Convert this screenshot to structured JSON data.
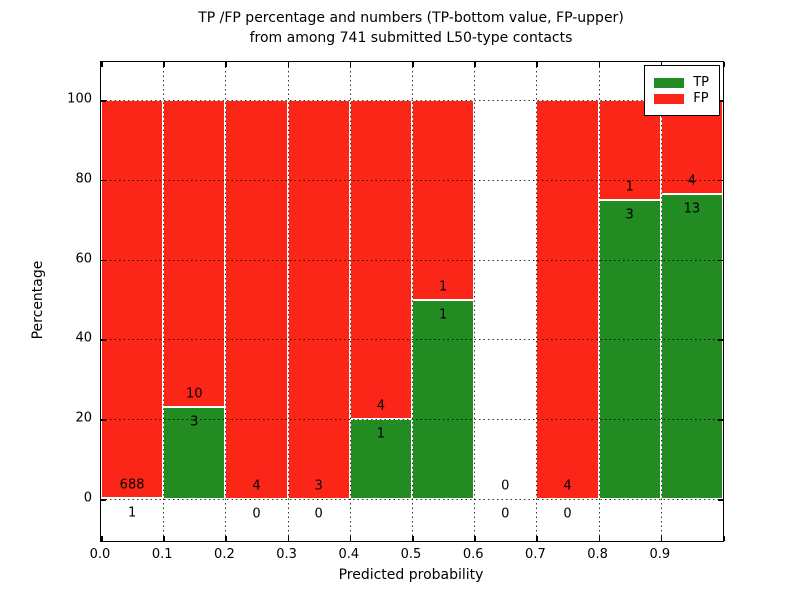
{
  "title": {
    "line1": "TP /FP percentage and numbers (TP-bottom value, FP-upper)",
    "line2": "from among 741 submitted L50-type contacts"
  },
  "axes": {
    "xlabel": "Predicted probability",
    "ylabel": "Percentage"
  },
  "legend": {
    "entries": [
      {
        "label": "TP",
        "color": "#228b22"
      },
      {
        "label": "FP",
        "color": "#fb2618"
      }
    ],
    "position": "upper right"
  },
  "chart_data": {
    "type": "bar",
    "stacked": true,
    "normalized_to_percent": true,
    "title": "TP /FP percentage and numbers (TP-bottom value, FP-upper) from among 741 submitted L50-type contacts",
    "xlabel": "Predicted probability",
    "ylabel": "Percentage",
    "total_contacts": 741,
    "bin_width": 0.1,
    "xlim": [
      0.0,
      1.0
    ],
    "ylim": [
      -10.5,
      109.6
    ],
    "yticks": [
      0,
      20,
      40,
      60,
      80,
      100
    ],
    "xtick_labels": [
      "0.0",
      "0.1",
      "0.2",
      "0.3",
      "0.4",
      "0.5",
      "0.6",
      "0.7",
      "0.8",
      "0.9"
    ],
    "grid": "dotted, drawn above bars",
    "bar_edge_color": "#ffffff",
    "series": [
      {
        "name": "TP",
        "color": "#228b22",
        "counts": [
          1,
          3,
          0,
          0,
          1,
          1,
          0,
          0,
          3,
          13
        ]
      },
      {
        "name": "FP",
        "color": "#fb2618",
        "counts": [
          688,
          10,
          4,
          3,
          4,
          1,
          0,
          4,
          1,
          4
        ]
      }
    ],
    "bins": [
      {
        "range": "0.0-0.1",
        "tp": 1,
        "fp": 688,
        "tp_pct": 0.15
      },
      {
        "range": "0.1-0.2",
        "tp": 3,
        "fp": 10,
        "tp_pct": 23.08
      },
      {
        "range": "0.2-0.3",
        "tp": 0,
        "fp": 4,
        "tp_pct": 0
      },
      {
        "range": "0.3-0.4",
        "tp": 0,
        "fp": 3,
        "tp_pct": 0
      },
      {
        "range": "0.4-0.5",
        "tp": 1,
        "fp": 4,
        "tp_pct": 20
      },
      {
        "range": "0.5-0.6",
        "tp": 1,
        "fp": 1,
        "tp_pct": 50
      },
      {
        "range": "0.6-0.7",
        "tp": 0,
        "fp": 0,
        "tp_pct": null
      },
      {
        "range": "0.7-0.8",
        "tp": 0,
        "fp": 4,
        "tp_pct": 0
      },
      {
        "range": "0.8-0.9",
        "tp": 3,
        "fp": 1,
        "tp_pct": 75
      },
      {
        "range": "0.9-1.0",
        "tp": 13,
        "fp": 4,
        "tp_pct": 76.47
      }
    ]
  }
}
